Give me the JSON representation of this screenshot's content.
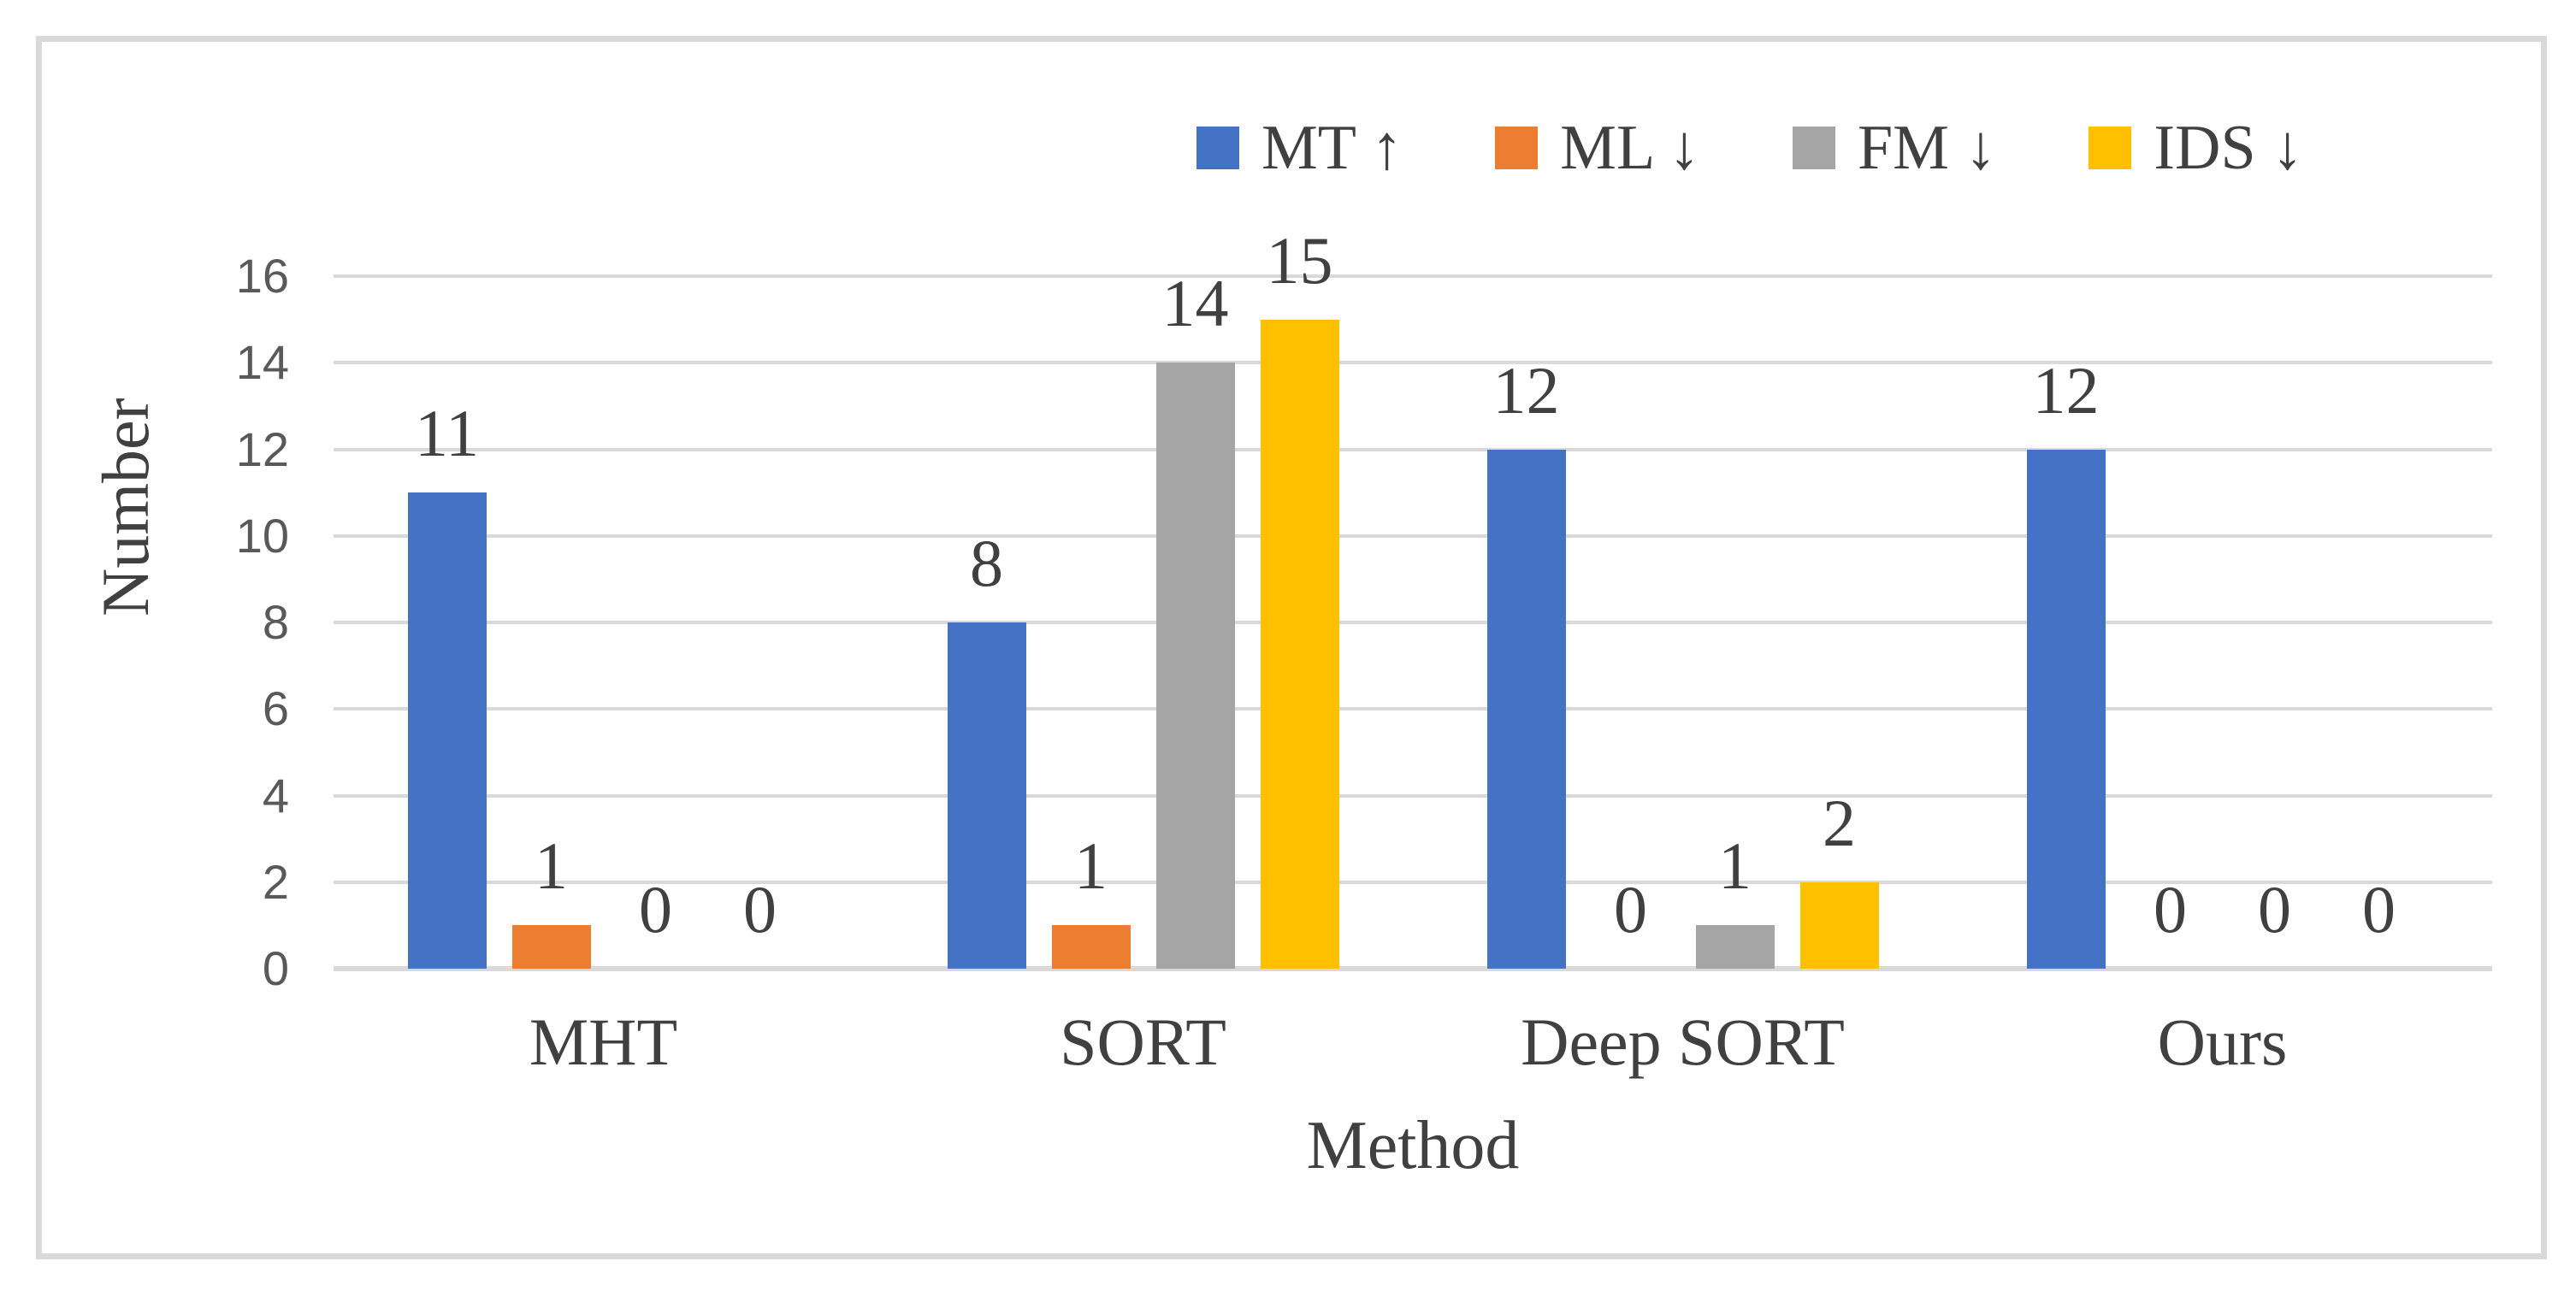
{
  "chart_data": {
    "type": "bar",
    "title": "",
    "xlabel": "Method",
    "ylabel": "Number",
    "categories": [
      "MHT",
      "SORT",
      "Deep SORT",
      "Ours"
    ],
    "series": [
      {
        "name": "MT ↑",
        "color": "#4472C4",
        "values": [
          11,
          8,
          12,
          12
        ]
      },
      {
        "name": "ML ↓",
        "color": "#ED7D31",
        "values": [
          1,
          1,
          0,
          0
        ]
      },
      {
        "name": "FM ↓",
        "color": "#A5A5A5",
        "values": [
          0,
          14,
          1,
          0
        ]
      },
      {
        "name": "IDS ↓",
        "color": "#FFC000",
        "values": [
          0,
          15,
          2,
          0
        ]
      }
    ],
    "ylim": [
      0,
      16
    ],
    "yticks": [
      0,
      2,
      4,
      6,
      8,
      10,
      12,
      14,
      16
    ],
    "grid": true,
    "data_labels": true,
    "legend_position": "top-right"
  },
  "colors": {
    "label_text": "#404040",
    "tick_text": "#595959",
    "gridline": "#D9D9D9",
    "figure_border": "#D9D9D9",
    "background": "#FFFFFF"
  }
}
